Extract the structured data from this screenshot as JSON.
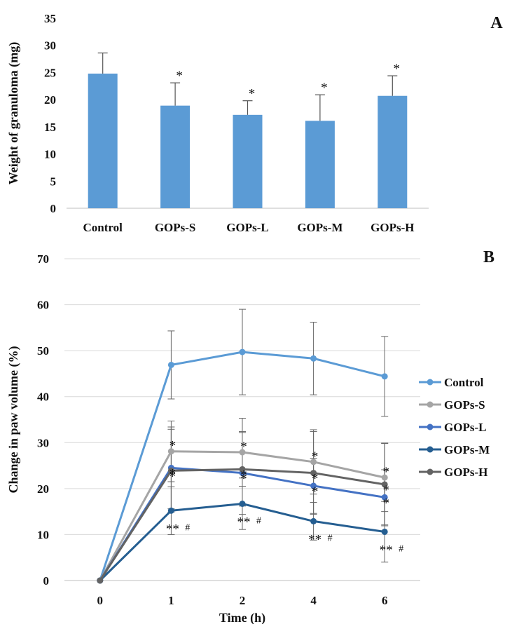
{
  "chart_data": [
    {
      "panel": "A",
      "type": "bar",
      "categories": [
        "Control",
        "GOPs-S",
        "GOPs-L",
        "GOPs-M",
        "GOPs-H"
      ],
      "values": [
        24.8,
        18.9,
        17.2,
        16.1,
        20.7
      ],
      "error_plus": [
        3.8,
        4.2,
        2.6,
        4.8,
        3.7
      ],
      "significance": [
        "",
        "*",
        "*",
        "*",
        "*"
      ],
      "ylabel": "Weight of granuloma (mg)",
      "xlabel": "",
      "ylim": [
        0,
        35
      ],
      "yticks": [
        0,
        5,
        10,
        15,
        20,
        25,
        30,
        35
      ],
      "bar_color": "#5B9BD5",
      "grid": false
    },
    {
      "panel": "B",
      "type": "line",
      "x": [
        "0",
        "1",
        "2",
        "4",
        "6"
      ],
      "xlabel": "Time (h)",
      "ylabel": "Change in paw volume (%)",
      "ylim": [
        0,
        70
      ],
      "yticks": [
        0,
        10,
        20,
        30,
        40,
        50,
        60,
        70
      ],
      "grid": true,
      "legend_position": "right",
      "series": [
        {
          "name": "Control",
          "color": "#5B9BD5",
          "values": [
            0,
            46.9,
            49.7,
            48.3,
            44.4
          ],
          "err": [
            0,
            7.4,
            9.3,
            7.9,
            8.7
          ],
          "sig": [
            "",
            "",
            "",
            "",
            ""
          ]
        },
        {
          "name": "GOPs-S",
          "color": "#A5A5A5",
          "values": [
            0,
            28.1,
            27.9,
            25.8,
            22.4
          ],
          "err": [
            0,
            6.6,
            7.4,
            7.0,
            7.4
          ],
          "sig": [
            "",
            "*",
            "*",
            "*",
            "*"
          ]
        },
        {
          "name": "GOPs-L",
          "color": "#4472C4",
          "values": [
            0,
            24.5,
            23.4,
            20.6,
            18.1
          ],
          "err": [
            0,
            8.9,
            9.0,
            6.0,
            6.0
          ],
          "sig": [
            "",
            "*",
            "*",
            "*",
            "*"
          ]
        },
        {
          "name": "GOPs-M",
          "color": "#255E91",
          "values": [
            0,
            15.2,
            16.7,
            12.9,
            10.6
          ],
          "err": [
            0,
            5.2,
            5.6,
            4.1,
            6.6
          ],
          "sig": [
            "",
            "**",
            "**",
            "**",
            "**"
          ],
          "sig_hash": [
            "",
            "#",
            "#",
            "#",
            "#"
          ]
        },
        {
          "name": "GOPs-H",
          "color": "#636363",
          "values": [
            0,
            23.9,
            24.2,
            23.4,
            20.9
          ],
          "err": [
            0,
            9.0,
            8.0,
            9.0,
            9.0
          ],
          "sig": [
            "",
            "*",
            "*",
            "*",
            "*"
          ]
        }
      ]
    }
  ]
}
